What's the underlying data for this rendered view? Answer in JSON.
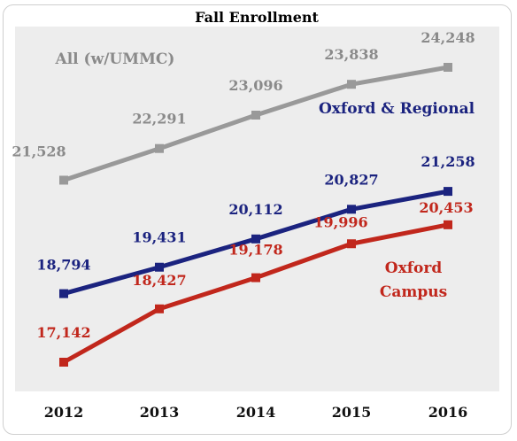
{
  "chart_data": {
    "type": "line",
    "title": "Fall Enrollment",
    "categories": [
      "2012",
      "2013",
      "2014",
      "2015",
      "2016"
    ],
    "ylim": [
      16000,
      25000
    ],
    "grid": false,
    "legend": "none",
    "series": [
      {
        "name": "All (w/UMMC)",
        "label_lines": [
          "All (w/UMMC)"
        ],
        "color": "#999999",
        "label_color": "#8a8a8a",
        "values": [
          21528,
          22291,
          23096,
          23838,
          24248
        ],
        "data_labels": [
          "21,528",
          "22,291",
          "23,096",
          "23,838",
          "24,248"
        ]
      },
      {
        "name": "Oxford & Regional",
        "label_lines": [
          "Oxford & Regional"
        ],
        "color": "#1b237f",
        "label_color": "#1b237f",
        "values": [
          18794,
          19431,
          20112,
          20827,
          21258
        ],
        "data_labels": [
          "18,794",
          "19,431",
          "20,112",
          "20,827",
          "21,258"
        ]
      },
      {
        "name": "Oxford Campus",
        "label_lines": [
          "Oxford",
          "Campus"
        ],
        "color": "#c1271c",
        "label_color": "#c1271c",
        "values": [
          17142,
          18427,
          19178,
          19996,
          20453
        ],
        "data_labels": [
          "17,142",
          "18,427",
          "19,178",
          "19,996",
          "20,453"
        ]
      }
    ],
    "plot_background": "#ededed"
  }
}
